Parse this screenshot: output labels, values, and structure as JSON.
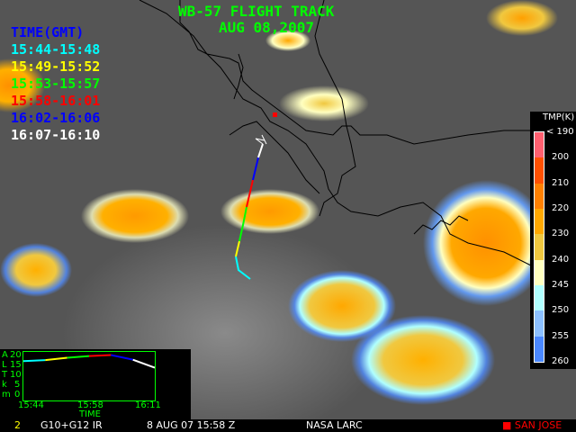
{
  "title": "WB-57 FLIGHT TRACK",
  "date": "AUG 08,2007",
  "legend": {
    "header": "TIME(GMT)",
    "header_color": "#0000ff",
    "items": [
      {
        "label": "15:44-15:48",
        "color": "#00ffff"
      },
      {
        "label": "15:49-15:52",
        "color": "#ffff00"
      },
      {
        "label": "15:53-15:57",
        "color": "#00ff00"
      },
      {
        "label": "15:58-16:01",
        "color": "#ff0000"
      },
      {
        "label": "16:02-16:06",
        "color": "#0000ff"
      },
      {
        "label": "16:07-16:10",
        "color": "#ffffff"
      }
    ]
  },
  "colorbar": {
    "title": "TMP(K)",
    "ticks": [
      "< 190",
      "200",
      "210",
      "220",
      "230",
      "240",
      "245",
      "250",
      "255",
      "260"
    ],
    "colors": [
      "#ff6070",
      "#ff5000",
      "#ff8000",
      "#ffa800",
      "#f0c840",
      "#ffffc0",
      "#b0ffff",
      "#8cc0ff",
      "#4a88ff"
    ]
  },
  "altitude_plot": {
    "ylabel": [
      "A",
      "L",
      "T",
      "k",
      "m"
    ],
    "yticks": [
      "20",
      "15",
      "10",
      "5",
      "0"
    ],
    "xticks": [
      "15:44",
      "15:58",
      "16:11"
    ],
    "xlabel": "TIME",
    "ylim": [
      0,
      20
    ],
    "segments": [
      {
        "color": "#00ffff",
        "alt": [
          16.2,
          16.6
        ]
      },
      {
        "color": "#ffff00",
        "alt": [
          16.6,
          17.6
        ]
      },
      {
        "color": "#00ff00",
        "alt": [
          17.6,
          18.3
        ]
      },
      {
        "color": "#ff0000",
        "alt": [
          18.3,
          18.7
        ]
      },
      {
        "color": "#0000ff",
        "alt": [
          18.7,
          16.8
        ]
      },
      {
        "color": "#ffffff",
        "alt": [
          16.8,
          13.5
        ]
      }
    ]
  },
  "footer": {
    "frame": "2",
    "sensor": "G10+G12 IR",
    "datetime": "8 AUG 07 15:58 Z",
    "source": "NASA LARC",
    "marker_label": "SAN JOSE",
    "marker_color": "#ff0000"
  }
}
